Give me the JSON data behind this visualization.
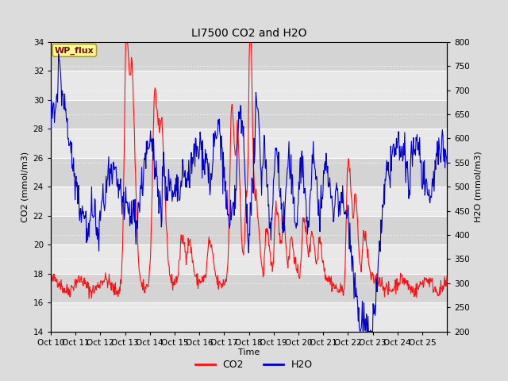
{
  "title": "LI7500 CO2 and H2O",
  "xlabel": "Time",
  "ylabel_left": "CO2 (mmol/m3)",
  "ylabel_right": "H2O (mmol/m3)",
  "ylim_left": [
    14,
    34
  ],
  "ylim_right": [
    200,
    800
  ],
  "yticks_left": [
    14,
    16,
    18,
    20,
    22,
    24,
    26,
    28,
    30,
    32,
    34
  ],
  "yticks_right": [
    200,
    250,
    300,
    350,
    400,
    450,
    500,
    550,
    600,
    650,
    700,
    750,
    800
  ],
  "xtick_labels": [
    "Oct 10",
    "Oct 11",
    "Oct 12",
    "Oct 13",
    "Oct 14",
    "Oct 15",
    "Oct 16",
    "Oct 17",
    "Oct 18",
    "Oct 19",
    "Oct 20",
    "Oct 21",
    "Oct 22",
    "Oct 23",
    "Oct 24",
    "Oct 25",
    ""
  ],
  "fig_bg": "#dcdcdc",
  "plot_bg_light": "#e8e8e8",
  "plot_bg_dark": "#d4d4d4",
  "grid_color": "#ffffff",
  "watermark_text": "WP_flux",
  "watermark_bg": "#ffff99",
  "watermark_border": "#b8a000",
  "co2_color": "#ff1010",
  "h2o_color": "#0000cc",
  "legend_co2": "CO2",
  "legend_h2o": "H2O",
  "n_days": 16,
  "n_per_day": 48,
  "seed": 42
}
